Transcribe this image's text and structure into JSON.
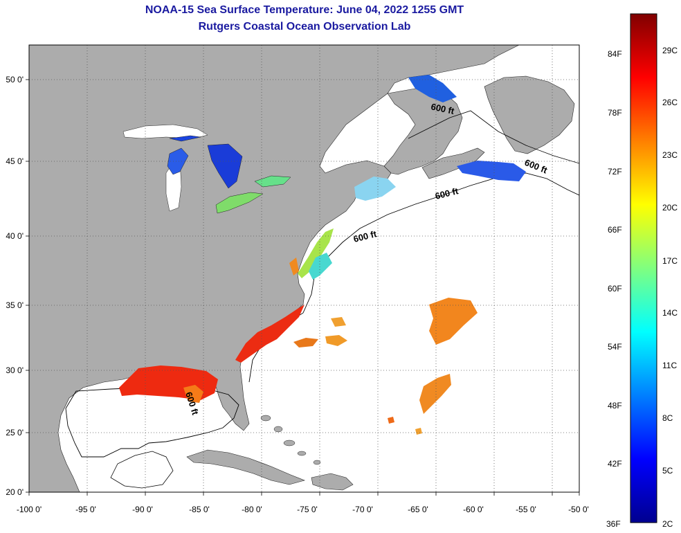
{
  "header": {
    "title": "NOAA-15 Sea Surface Temperature:  June 04, 2022 1255 GMT",
    "subtitle": "Rutgers Coastal Ocean Observation Lab"
  },
  "map": {
    "lon_range": [
      -100,
      -50
    ],
    "lat_range": [
      20,
      52.5
    ],
    "lon_ticks": [
      "-100 0'",
      "-95 0'",
      "-90 0'",
      "-85 0'",
      "-80 0'",
      "-75 0'",
      "-70 0'",
      "-65 0'",
      "-60 0'",
      "-55 0'",
      "-50 0'"
    ],
    "lat_ticks": [
      "50 0'",
      "45 0'",
      "40 0'",
      "35 0'",
      "30 0'",
      "25 0'",
      "20 0'"
    ],
    "contour_label": "600 ft",
    "colors": {
      "land": "#acacac",
      "ocean": "#ffffff",
      "grid": "#555555"
    }
  },
  "colorbar": {
    "f_labels": [
      "84F",
      "78F",
      "72F",
      "66F",
      "60F",
      "54F",
      "48F",
      "42F",
      "36F"
    ],
    "c_labels": [
      "29C",
      "26C",
      "23C",
      "20C",
      "17C",
      "14C",
      "11C",
      "8C",
      "5C",
      "2C"
    ]
  }
}
